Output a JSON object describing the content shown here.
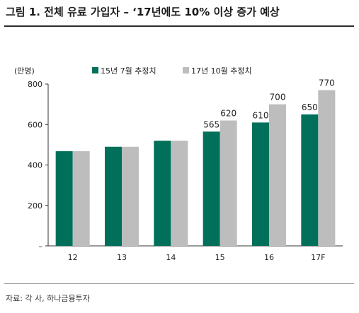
{
  "header": {
    "title": "그림 1. 전체 유료 가입자 – ‘17년에도 10% 이상 증가 예상"
  },
  "footer": {
    "source": "자료: 각 사, 하나금융투자"
  },
  "chart_data": {
    "type": "bar",
    "unit_label": "(만명)",
    "categories": [
      "12",
      "13",
      "14",
      "15",
      "16",
      "17F"
    ],
    "series": [
      {
        "name": "15년 7월 추정치",
        "color": "#00705A",
        "values": [
          468,
          490,
          520,
          565,
          610,
          650
        ],
        "labels": [
          "",
          "",
          "",
          "565",
          "610",
          "650"
        ]
      },
      {
        "name": "17년 10월 추정치",
        "color": "#BDBDBD",
        "values": [
          468,
          490,
          520,
          620,
          700,
          770
        ],
        "labels": [
          "",
          "",
          "",
          "620",
          "700",
          "770"
        ]
      }
    ],
    "ylim": [
      0,
      800
    ],
    "yticks": [
      0,
      200,
      400,
      600,
      800
    ],
    "ytick_labels": [
      "–",
      "200",
      "400",
      "600",
      "800"
    ],
    "legend_position": "top-left"
  }
}
